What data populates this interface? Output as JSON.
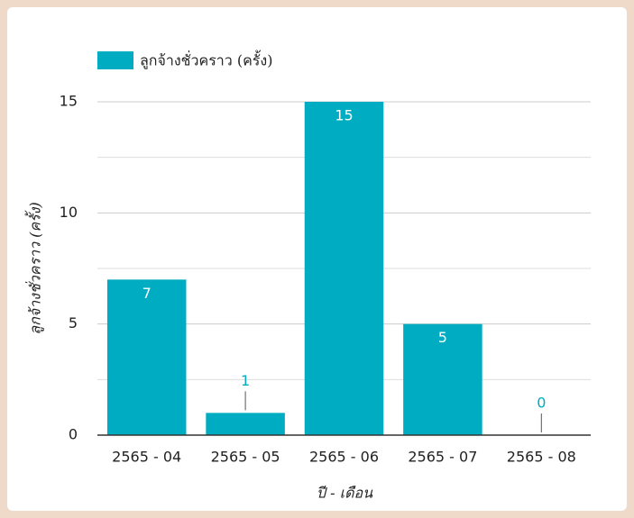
{
  "chart_data": {
    "type": "bar",
    "categories": [
      "2565 - 04",
      "2565 - 05",
      "2565 - 06",
      "2565 - 07",
      "2565 - 08"
    ],
    "series": [
      {
        "name": "ลูกจ้างชั่วคราว (ครั้ง)",
        "color": "#00acc1",
        "values": [
          7,
          1,
          15,
          5,
          0
        ]
      }
    ],
    "y_label": "ลูกจ้างชั่วคราว (ครั้ง)",
    "x_label": "ปี - เดือน",
    "ylim": [
      0,
      15
    ],
    "yticks": [
      0,
      5,
      10,
      15
    ],
    "minor_yticks": [
      2.5,
      7.5,
      12.5
    ],
    "grid": true,
    "legend": "top-left"
  }
}
